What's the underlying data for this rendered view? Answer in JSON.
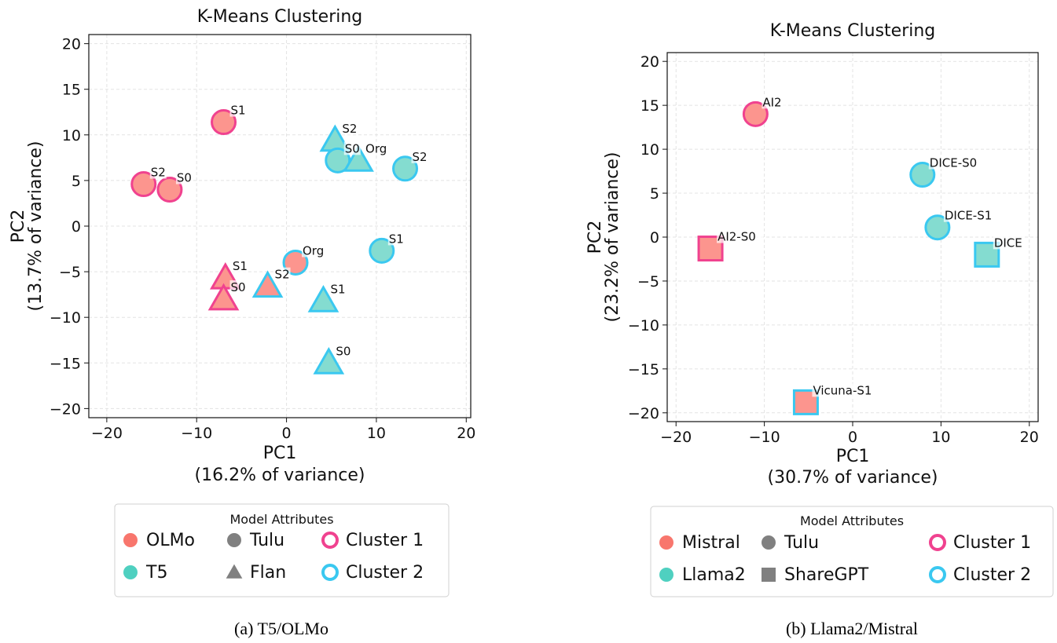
{
  "colors": {
    "OLMo": "#fc958e",
    "T5": "#84dcd0",
    "Mistral": "#fc958e",
    "Llama2": "#84dcd0",
    "cluster_1": "#f0428f",
    "cluster_2": "#3ac8f0",
    "legend_model_a": "#f8766d",
    "legend_model_b": "#4fd0c0",
    "legend_gray": "#808080"
  },
  "chart_data": [
    {
      "type": "scatter",
      "title": "K-Means Clustering",
      "xlabel": "PC1",
      "xlabel_sub": "(16.2% of variance)",
      "ylabel": "PC2",
      "ylabel_sub": "(13.7% of variance)",
      "xlim": [
        -22,
        20.5
      ],
      "ylim": [
        -21,
        21
      ],
      "xticks": [
        -20,
        -10,
        0,
        10,
        20
      ],
      "yticks": [
        -20,
        -15,
        -10,
        -5,
        0,
        5,
        10,
        15,
        20
      ],
      "grid": true,
      "caption": "(a) T5/OLMo",
      "points": [
        {
          "x": -7.0,
          "y": 11.4,
          "label": "S1",
          "model": "OLMo",
          "shape": "circle",
          "cluster": 1
        },
        {
          "x": -15.9,
          "y": 4.6,
          "label": "S2",
          "model": "OLMo",
          "shape": "circle",
          "cluster": 1
        },
        {
          "x": -13.0,
          "y": 4.0,
          "label": "S0",
          "model": "OLMo",
          "shape": "circle",
          "cluster": 1
        },
        {
          "x": 5.4,
          "y": 9.4,
          "label": "S2",
          "model": "T5",
          "shape": "triangle",
          "cluster": 2
        },
        {
          "x": 5.7,
          "y": 7.2,
          "label": "S0",
          "model": "T5",
          "shape": "circle",
          "cluster": 2
        },
        {
          "x": 8.0,
          "y": 7.2,
          "label": "Org",
          "model": "T5",
          "shape": "triangle",
          "cluster": 2
        },
        {
          "x": 13.2,
          "y": 6.3,
          "label": "S2",
          "model": "T5",
          "shape": "circle",
          "cluster": 2
        },
        {
          "x": 10.6,
          "y": -2.7,
          "label": "S1",
          "model": "T5",
          "shape": "circle",
          "cluster": 2
        },
        {
          "x": 1.0,
          "y": -4.0,
          "label": "Org",
          "model": "OLMo",
          "shape": "circle",
          "cluster": 2
        },
        {
          "x": -6.8,
          "y": -5.7,
          "label": "S1",
          "model": "OLMo",
          "shape": "triangle",
          "cluster": 1
        },
        {
          "x": -7.0,
          "y": -8.0,
          "label": "S0",
          "model": "OLMo",
          "shape": "triangle",
          "cluster": 1
        },
        {
          "x": -2.1,
          "y": -6.6,
          "label": "S2",
          "model": "OLMo",
          "shape": "triangle",
          "cluster": 2
        },
        {
          "x": 4.1,
          "y": -8.2,
          "label": "S1",
          "model": "T5",
          "shape": "triangle",
          "cluster": 2
        },
        {
          "x": 4.7,
          "y": -15.0,
          "label": "S0",
          "model": "T5",
          "shape": "triangle",
          "cluster": 2
        }
      ],
      "legend": {
        "title": "Model Attributes",
        "placement": "below",
        "items": [
          {
            "label": "OLMo",
            "kind": "model_a",
            "shape": "circle"
          },
          {
            "label": "T5",
            "kind": "model_b",
            "shape": "circle"
          },
          {
            "label": "Tulu",
            "kind": "gray",
            "shape": "circle"
          },
          {
            "label": "Flan",
            "kind": "gray",
            "shape": "triangle"
          },
          {
            "label": "Cluster 1",
            "kind": "cluster_1",
            "shape": "ring"
          },
          {
            "label": "Cluster 2",
            "kind": "cluster_2",
            "shape": "ring"
          }
        ]
      }
    },
    {
      "type": "scatter",
      "title": "K-Means Clustering",
      "xlabel": "PC1",
      "xlabel_sub": "(30.7% of variance)",
      "ylabel": "PC2",
      "ylabel_sub": "(23.2% of variance)",
      "xlim": [
        -21,
        21
      ],
      "ylim": [
        -21,
        21
      ],
      "xticks": [
        -20,
        -10,
        0,
        10,
        20
      ],
      "yticks": [
        -20,
        -15,
        -10,
        -5,
        0,
        5,
        10,
        15,
        20
      ],
      "grid": true,
      "caption": "(b) Llama2/Mistral",
      "points": [
        {
          "x": -11.0,
          "y": 14.0,
          "label": "AI2",
          "model": "Mistral",
          "shape": "circle",
          "cluster": 1
        },
        {
          "x": -16.1,
          "y": -1.3,
          "label": "AI2-S0",
          "model": "Mistral",
          "shape": "square",
          "cluster": 1
        },
        {
          "x": 7.9,
          "y": 7.1,
          "label": "DICE-S0",
          "model": "Llama2",
          "shape": "circle",
          "cluster": 2
        },
        {
          "x": 9.6,
          "y": 1.1,
          "label": "DICE-S1",
          "model": "Llama2",
          "shape": "circle",
          "cluster": 2
        },
        {
          "x": 15.2,
          "y": -2.0,
          "label": "DICE",
          "model": "Llama2",
          "shape": "square",
          "cluster": 2
        },
        {
          "x": -5.3,
          "y": -18.8,
          "label": "Vicuna-S1",
          "model": "Mistral",
          "shape": "square",
          "cluster": 2
        }
      ],
      "legend": {
        "title": "Model Attributes",
        "placement": "below",
        "items": [
          {
            "label": "Mistral",
            "kind": "model_a",
            "shape": "circle"
          },
          {
            "label": "Llama2",
            "kind": "model_b",
            "shape": "circle"
          },
          {
            "label": "Tulu",
            "kind": "gray",
            "shape": "circle"
          },
          {
            "label": "ShareGPT",
            "kind": "gray",
            "shape": "square"
          },
          {
            "label": "Cluster 1",
            "kind": "cluster_1",
            "shape": "ring"
          },
          {
            "label": "Cluster 2",
            "kind": "cluster_2",
            "shape": "ring"
          }
        ]
      }
    }
  ]
}
